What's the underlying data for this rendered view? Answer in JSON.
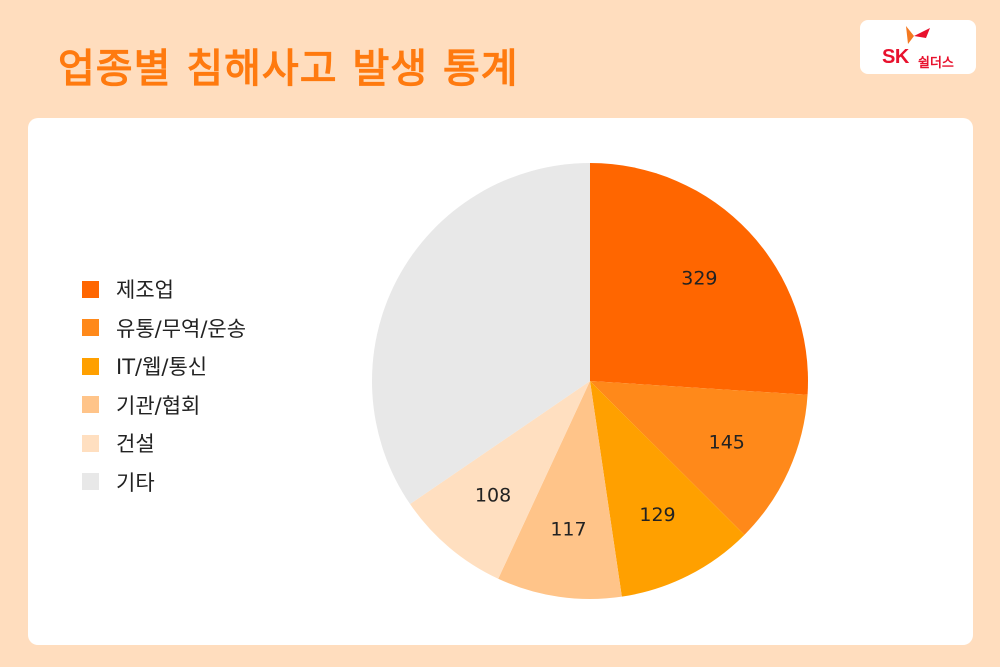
{
  "header": {
    "title": "업종별 침해사고 발생 통계",
    "logo_brand": "SK",
    "logo_sub": "쉴더스",
    "logo_colors": {
      "primary": "#E8112D",
      "accent": "#F47920"
    }
  },
  "chart_data": {
    "type": "pie",
    "title": "",
    "legend_position": "left",
    "start_angle_deg": 0,
    "direction": "clockwise",
    "slices": [
      {
        "label": "제조업",
        "value": 329,
        "display_value": "329",
        "color": "#FF6600"
      },
      {
        "label": "유통/무역/운송",
        "value": 145,
        "display_value": "145",
        "color": "#FF891A"
      },
      {
        "label": "IT/웹/통신",
        "value": 129,
        "display_value": "129",
        "color": "#FFA000"
      },
      {
        "label": "기관/협회",
        "value": 117,
        "display_value": "117",
        "color": "#FFC489"
      },
      {
        "label": "건설",
        "value": 108,
        "display_value": "108",
        "color": "#FFDFC0"
      },
      {
        "label": "기타",
        "value": 437,
        "display_value": "",
        "color": "#E8E8E8"
      }
    ]
  }
}
